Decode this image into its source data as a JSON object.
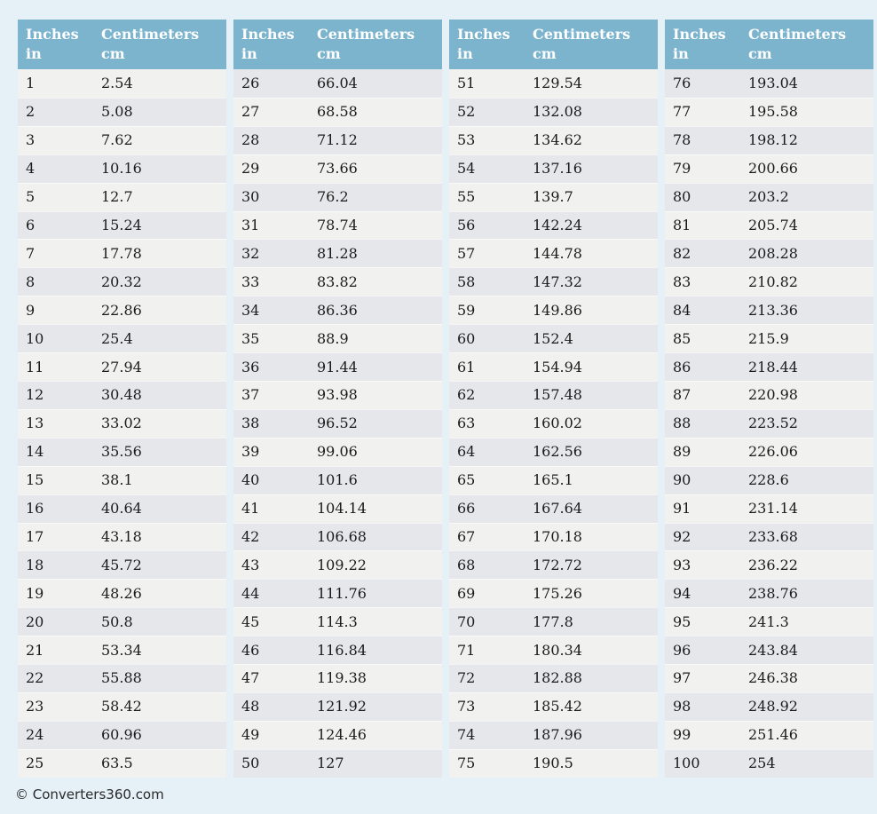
{
  "page": {
    "footer_text": "© Converters360.com"
  },
  "colors": {
    "page_background": "#e5f0f7",
    "header_background": "#7cb4ce",
    "header_text": "#ffffff",
    "row_light": "#f1f1f0",
    "row_dark": "#e6e7eb",
    "cell_text": "#1b1b1b"
  },
  "table_header": {
    "inches_label": "Inches",
    "inches_unit": "in",
    "cm_label": "Centimeters",
    "cm_unit": "cm"
  },
  "tables": [
    {
      "range": "1-25",
      "rows": [
        [
          "1",
          "2.54"
        ],
        [
          "2",
          "5.08"
        ],
        [
          "3",
          "7.62"
        ],
        [
          "4",
          "10.16"
        ],
        [
          "5",
          "12.7"
        ],
        [
          "6",
          "15.24"
        ],
        [
          "7",
          "17.78"
        ],
        [
          "8",
          "20.32"
        ],
        [
          "9",
          "22.86"
        ],
        [
          "10",
          "25.4"
        ],
        [
          "11",
          "27.94"
        ],
        [
          "12",
          "30.48"
        ],
        [
          "13",
          "33.02"
        ],
        [
          "14",
          "35.56"
        ],
        [
          "15",
          "38.1"
        ],
        [
          "16",
          "40.64"
        ],
        [
          "17",
          "43.18"
        ],
        [
          "18",
          "45.72"
        ],
        [
          "19",
          "48.26"
        ],
        [
          "20",
          "50.8"
        ],
        [
          "21",
          "53.34"
        ],
        [
          "22",
          "55.88"
        ],
        [
          "23",
          "58.42"
        ],
        [
          "24",
          "60.96"
        ],
        [
          "25",
          "63.5"
        ]
      ]
    },
    {
      "range": "26-50",
      "rows": [
        [
          "26",
          "66.04"
        ],
        [
          "27",
          "68.58"
        ],
        [
          "28",
          "71.12"
        ],
        [
          "29",
          "73.66"
        ],
        [
          "30",
          "76.2"
        ],
        [
          "31",
          "78.74"
        ],
        [
          "32",
          "81.28"
        ],
        [
          "33",
          "83.82"
        ],
        [
          "34",
          "86.36"
        ],
        [
          "35",
          "88.9"
        ],
        [
          "36",
          "91.44"
        ],
        [
          "37",
          "93.98"
        ],
        [
          "38",
          "96.52"
        ],
        [
          "39",
          "99.06"
        ],
        [
          "40",
          "101.6"
        ],
        [
          "41",
          "104.14"
        ],
        [
          "42",
          "106.68"
        ],
        [
          "43",
          "109.22"
        ],
        [
          "44",
          "111.76"
        ],
        [
          "45",
          "114.3"
        ],
        [
          "46",
          "116.84"
        ],
        [
          "47",
          "119.38"
        ],
        [
          "48",
          "121.92"
        ],
        [
          "49",
          "124.46"
        ],
        [
          "50",
          "127"
        ]
      ]
    },
    {
      "range": "51-75",
      "rows": [
        [
          "51",
          "129.54"
        ],
        [
          "52",
          "132.08"
        ],
        [
          "53",
          "134.62"
        ],
        [
          "54",
          "137.16"
        ],
        [
          "55",
          "139.7"
        ],
        [
          "56",
          "142.24"
        ],
        [
          "57",
          "144.78"
        ],
        [
          "58",
          "147.32"
        ],
        [
          "59",
          "149.86"
        ],
        [
          "60",
          "152.4"
        ],
        [
          "61",
          "154.94"
        ],
        [
          "62",
          "157.48"
        ],
        [
          "63",
          "160.02"
        ],
        [
          "64",
          "162.56"
        ],
        [
          "65",
          "165.1"
        ],
        [
          "66",
          "167.64"
        ],
        [
          "67",
          "170.18"
        ],
        [
          "68",
          "172.72"
        ],
        [
          "69",
          "175.26"
        ],
        [
          "70",
          "177.8"
        ],
        [
          "71",
          "180.34"
        ],
        [
          "72",
          "182.88"
        ],
        [
          "73",
          "185.42"
        ],
        [
          "74",
          "187.96"
        ],
        [
          "75",
          "190.5"
        ]
      ]
    },
    {
      "range": "76-100",
      "rows": [
        [
          "76",
          "193.04"
        ],
        [
          "77",
          "195.58"
        ],
        [
          "78",
          "198.12"
        ],
        [
          "79",
          "200.66"
        ],
        [
          "80",
          "203.2"
        ],
        [
          "81",
          "205.74"
        ],
        [
          "82",
          "208.28"
        ],
        [
          "83",
          "210.82"
        ],
        [
          "84",
          "213.36"
        ],
        [
          "85",
          "215.9"
        ],
        [
          "86",
          "218.44"
        ],
        [
          "87",
          "220.98"
        ],
        [
          "88",
          "223.52"
        ],
        [
          "89",
          "226.06"
        ],
        [
          "90",
          "228.6"
        ],
        [
          "91",
          "231.14"
        ],
        [
          "92",
          "233.68"
        ],
        [
          "93",
          "236.22"
        ],
        [
          "94",
          "238.76"
        ],
        [
          "95",
          "241.3"
        ],
        [
          "96",
          "243.84"
        ],
        [
          "97",
          "246.38"
        ],
        [
          "98",
          "248.92"
        ],
        [
          "99",
          "251.46"
        ],
        [
          "100",
          "254"
        ]
      ]
    }
  ]
}
